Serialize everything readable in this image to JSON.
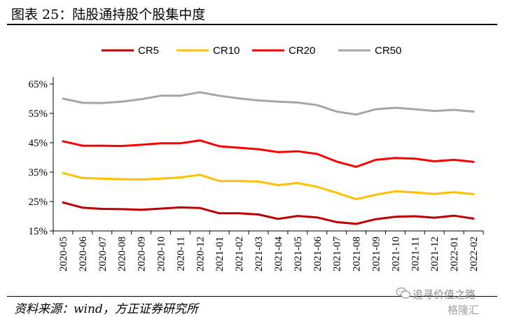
{
  "figure": {
    "title": "图表 25：陆股通持股个股集中度",
    "source": "资料来源：wind，方正证券研究所"
  },
  "watermark": {
    "text": "追寻价值之路",
    "brand": "格隆汇"
  },
  "chart_data": {
    "type": "line",
    "title": "",
    "xlabel": "",
    "ylabel": "",
    "x": [
      "2020-05",
      "2020-06",
      "2020-07",
      "2020-08",
      "2020-09",
      "2020-10",
      "2020-11",
      "2020-12",
      "2021-01",
      "2021-02",
      "2021-03",
      "2021-04",
      "2021-05",
      "2021-06",
      "2021-07",
      "2021-08",
      "2021-09",
      "2021-10",
      "2021-11",
      "2021-12",
      "2022-01",
      "2022-02"
    ],
    "ylim": [
      15,
      65
    ],
    "yticks": [
      15,
      25,
      35,
      45,
      55,
      65
    ],
    "ytick_labels": [
      "15%",
      "25%",
      "35%",
      "45%",
      "55%",
      "65%"
    ],
    "grid": false,
    "legend_position": "top",
    "series": [
      {
        "name": "CR5",
        "color": "#C00000",
        "values": [
          24.7,
          22.9,
          22.5,
          22.4,
          22.2,
          22.6,
          23.0,
          22.8,
          21.0,
          21.0,
          20.6,
          19.1,
          20.1,
          19.6,
          18.0,
          17.4,
          19.0,
          19.8,
          20.0,
          19.5,
          20.2,
          19.2
        ]
      },
      {
        "name": "CR10",
        "color": "#FFC000",
        "values": [
          34.7,
          33.0,
          32.8,
          32.6,
          32.5,
          32.8,
          33.2,
          34.1,
          32.0,
          32.0,
          31.8,
          30.6,
          31.3,
          30.0,
          28.0,
          25.8,
          27.3,
          28.5,
          28.1,
          27.6,
          28.2,
          27.5
        ]
      },
      {
        "name": "CR20",
        "color": "#FF0000",
        "values": [
          45.5,
          44.0,
          44.0,
          43.9,
          44.3,
          44.8,
          44.8,
          45.8,
          43.8,
          43.3,
          42.8,
          41.8,
          42.1,
          41.2,
          38.6,
          36.8,
          39.2,
          39.8,
          39.6,
          38.7,
          39.2,
          38.5
        ]
      },
      {
        "name": "CR50",
        "color": "#A6A6A6",
        "values": [
          60.0,
          58.6,
          58.5,
          59.0,
          59.8,
          61.0,
          61.0,
          62.2,
          61.0,
          60.1,
          59.4,
          59.0,
          58.7,
          57.8,
          55.6,
          54.6,
          56.4,
          56.9,
          56.4,
          55.8,
          56.2,
          55.6
        ]
      }
    ]
  }
}
